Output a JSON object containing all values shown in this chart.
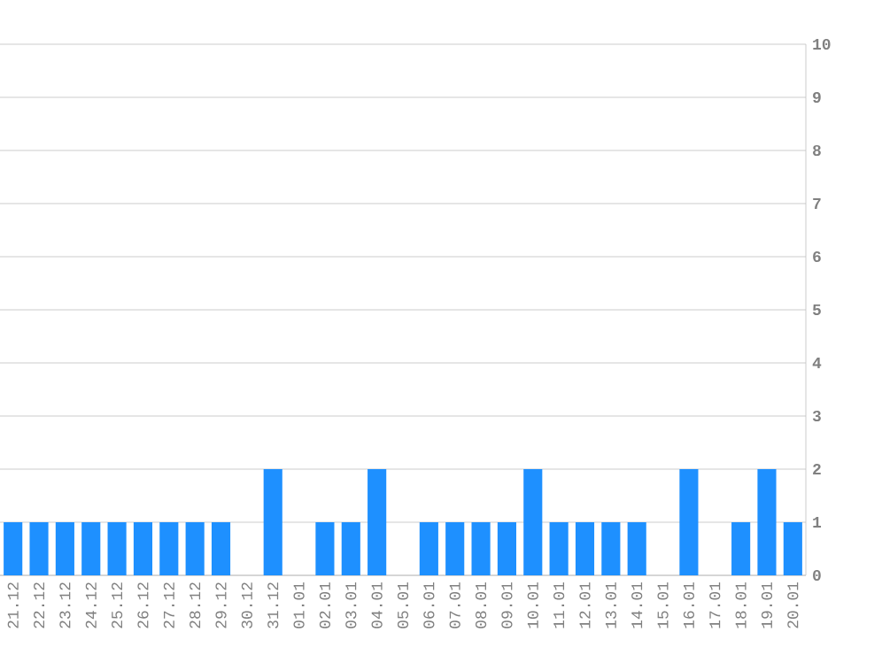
{
  "chart_data": {
    "type": "bar",
    "categories": [
      "21.12",
      "22.12",
      "23.12",
      "24.12",
      "25.12",
      "26.12",
      "27.12",
      "28.12",
      "29.12",
      "30.12",
      "31.12",
      "01.01",
      "02.01",
      "03.01",
      "04.01",
      "05.01",
      "06.01",
      "07.01",
      "08.01",
      "09.01",
      "10.01",
      "11.01",
      "12.01",
      "13.01",
      "14.01",
      "15.01",
      "16.01",
      "17.01",
      "18.01",
      "19.01",
      "20.01"
    ],
    "values": [
      1,
      1,
      1,
      1,
      1,
      1,
      1,
      1,
      1,
      0,
      2,
      0,
      1,
      1,
      2,
      0,
      1,
      1,
      1,
      1,
      2,
      1,
      1,
      1,
      1,
      0,
      2,
      0,
      1,
      2,
      1
    ],
    "color": "#1e90ff",
    "ylim": [
      0,
      10
    ],
    "yticks": [
      0,
      1,
      2,
      3,
      4,
      5,
      6,
      7,
      8,
      9,
      10
    ],
    "grid": "y"
  }
}
